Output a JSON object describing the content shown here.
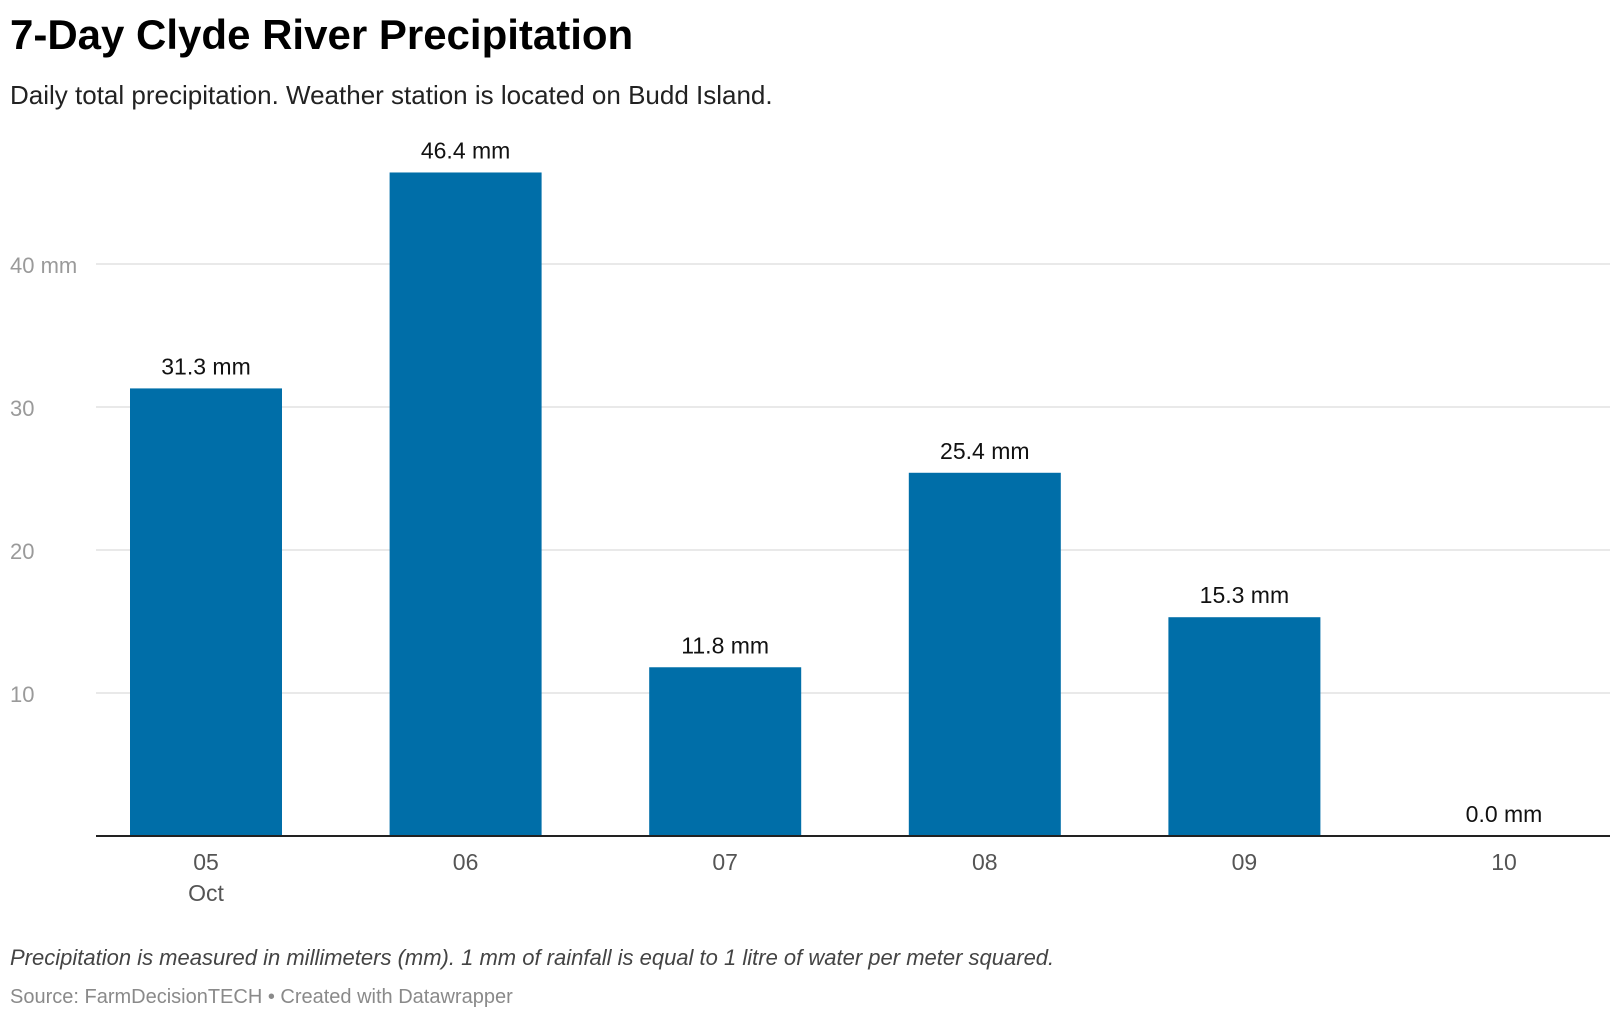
{
  "header": {
    "title": "7-Day Clyde River Precipitation",
    "subtitle": "Daily total precipitation. Weather station is located on Budd Island."
  },
  "footer": {
    "note": "Precipitation is measured in millimeters (mm). 1 mm of rainfall is equal to 1 litre of water per meter squared.",
    "source": "Source: FarmDecisionTECH • Created with Datawrapper"
  },
  "chart_data": {
    "type": "bar",
    "title": "7-Day Clyde River Precipitation",
    "subtitle": "Daily total precipitation. Weather station is located on Budd Island.",
    "categories": [
      "05",
      "06",
      "07",
      "08",
      "09",
      "10"
    ],
    "category_sublabels": [
      "Oct",
      "",
      "",
      "",
      "",
      ""
    ],
    "values": [
      31.3,
      46.4,
      11.8,
      25.4,
      15.3,
      0.0
    ],
    "value_labels": [
      "31.3 mm",
      "46.4 mm",
      "11.8 mm",
      "25.4 mm",
      "15.3 mm",
      "0.0 mm"
    ],
    "yticks": [
      10,
      20,
      30,
      40
    ],
    "ytick_labels": [
      "10",
      "20",
      "30",
      "40 mm"
    ],
    "ylim": [
      0,
      50
    ],
    "grid": true,
    "bar_color": "#006ea8",
    "grid_color": "#e2e2e2",
    "axis_label_color": "#9a9a9a"
  }
}
